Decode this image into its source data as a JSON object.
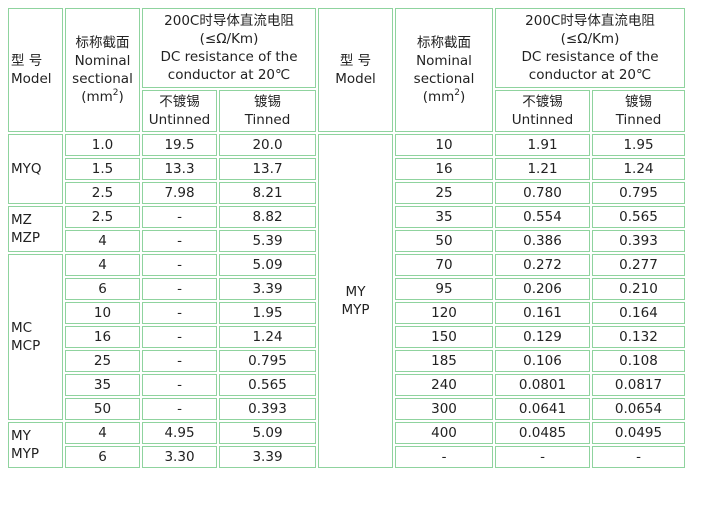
{
  "header": {
    "model_cn": "型 号",
    "model_en": "Model",
    "section_cn": "标称截面",
    "section_en1": "Nominal",
    "section_en2": "sectional",
    "section_unit_pre": "(mm",
    "section_unit_sup": "2",
    "section_unit_post": ")",
    "res_cn": "200C时导体直流电阻",
    "res_unit": "(≤Ω/Km)",
    "res_en1": "DC resistance of the",
    "res_en2": "conductor at 20℃",
    "untinned_cn": "不镀锡",
    "untinned_en": "Untinned",
    "tinned_cn": "镀锡",
    "tinned_en": "Tinned"
  },
  "left_groups": [
    {
      "model": [
        "MYQ"
      ],
      "rows": [
        [
          "1.0",
          "19.5",
          "20.0"
        ],
        [
          "1.5",
          "13.3",
          "13.7"
        ],
        [
          "2.5",
          "7.98",
          "8.21"
        ]
      ]
    },
    {
      "model": [
        "MZ",
        "MZP"
      ],
      "rows": [
        [
          "2.5",
          "-",
          "8.82"
        ],
        [
          "4",
          "-",
          "5.39"
        ]
      ]
    },
    {
      "model": [
        "MC",
        "MCP"
      ],
      "rows": [
        [
          "4",
          "-",
          "5.09"
        ],
        [
          "6",
          "-",
          "3.39"
        ],
        [
          "10",
          "-",
          "1.95"
        ],
        [
          "16",
          "-",
          "1.24"
        ],
        [
          "25",
          "-",
          "0.795"
        ],
        [
          "35",
          "-",
          "0.565"
        ],
        [
          "50",
          "-",
          "0.393"
        ]
      ]
    },
    {
      "model": [
        "MY",
        "MYP"
      ],
      "rows": [
        [
          "4",
          "4.95",
          "5.09"
        ],
        [
          "6",
          "3.30",
          "3.39"
        ]
      ]
    }
  ],
  "right_group": {
    "model": [
      "MY",
      "MYP"
    ],
    "rows": [
      [
        "10",
        "1.91",
        "1.95"
      ],
      [
        "16",
        "1.21",
        "1.24"
      ],
      [
        "25",
        "0.780",
        "0.795"
      ],
      [
        "35",
        "0.554",
        "0.565"
      ],
      [
        "50",
        "0.386",
        "0.393"
      ],
      [
        "70",
        "0.272",
        "0.277"
      ],
      [
        "95",
        "0.206",
        "0.210"
      ],
      [
        "120",
        "0.161",
        "0.164"
      ],
      [
        "150",
        "0.129",
        "0.132"
      ],
      [
        "185",
        "0.106",
        "0.108"
      ],
      [
        "240",
        "0.0801",
        "0.0817"
      ],
      [
        "300",
        "0.0641",
        "0.0654"
      ],
      [
        "400",
        "0.0485",
        "0.0495"
      ],
      [
        "-",
        "-",
        "-"
      ]
    ]
  }
}
